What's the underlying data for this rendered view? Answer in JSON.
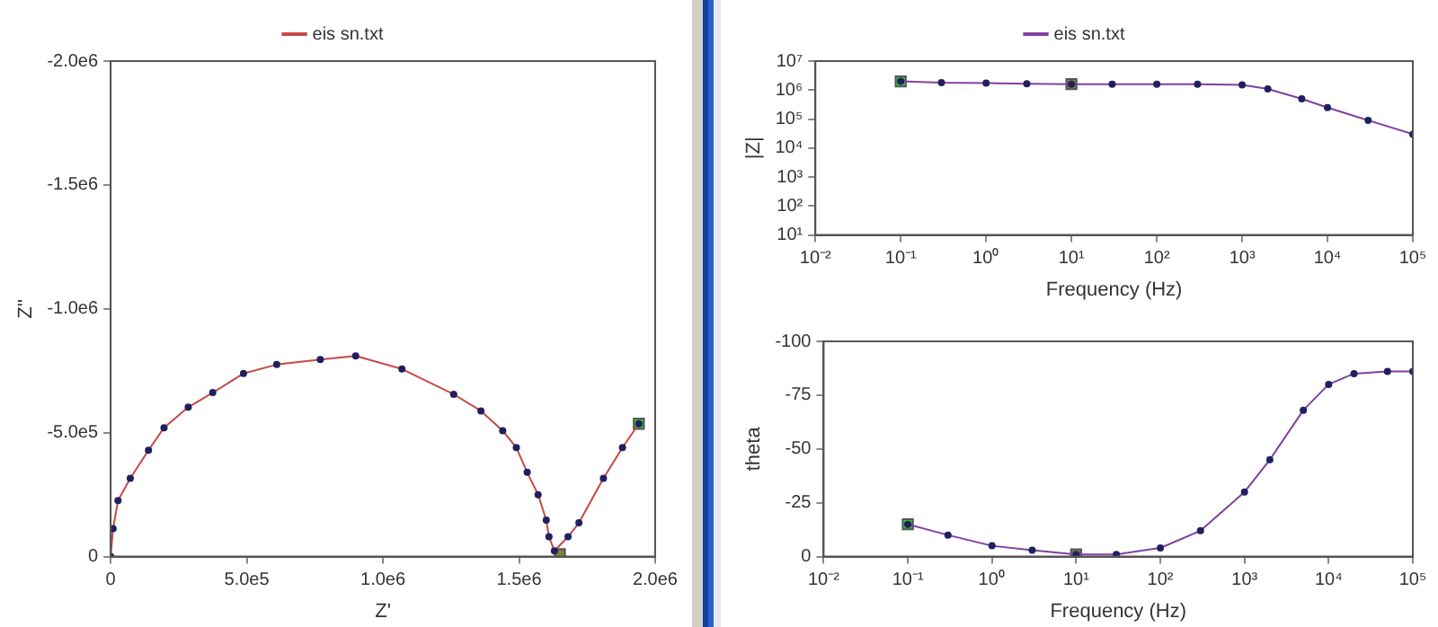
{
  "chart_data": [
    {
      "type": "line",
      "xlabel": "Z'",
      "ylabel": "Z''",
      "xlim": [
        0,
        2000000
      ],
      "xticks": [
        {
          "value": 0,
          "label": "0"
        },
        {
          "value": 500000,
          "label": "5.0e5"
        },
        {
          "value": 1000000,
          "label": "1.0e6"
        },
        {
          "value": 1500000,
          "label": "1.5e6"
        },
        {
          "value": 2000000,
          "label": "2.0e6"
        }
      ],
      "ylim": [
        0,
        -2000000
      ],
      "yticks": [
        {
          "value": 0,
          "label": "0"
        },
        {
          "value": -500000,
          "label": "-5.0e5"
        },
        {
          "value": -1000000,
          "label": "-1.0e6"
        },
        {
          "value": -1500000,
          "label": "-1.5e6"
        },
        {
          "value": -2000000,
          "label": "-2.0e6"
        }
      ],
      "grid": false,
      "legend": "top",
      "marker": "circle",
      "series": [
        {
          "name": "eis sn.txt",
          "color": "#c84848",
          "x": [
            0,
            9000,
            27000,
            72000,
            139000,
            196000,
            285000,
            375000,
            488000,
            610000,
            770000,
            900000,
            1070000,
            1260000,
            1360000,
            1440000,
            1490000,
            1530000,
            1570000,
            1600000,
            1610000,
            1630000,
            1680000,
            1720000,
            1810000,
            1880000,
            1940000
          ],
          "values": [
            0,
            -113000,
            -226000,
            -316000,
            -429000,
            -520000,
            -603000,
            -662000,
            -739000,
            -775000,
            -795000,
            -810000,
            -757000,
            -655000,
            -588000,
            -508000,
            -440000,
            -340000,
            -250000,
            -147000,
            -80000,
            -23000,
            -80000,
            -136000,
            -316000,
            -440000,
            -536000
          ]
        },
        {
          "type": "scatter",
          "marker": "square",
          "color": "#33cc33",
          "x": [
            1940000
          ],
          "values": [
            -536000
          ]
        },
        {
          "type": "scatter",
          "marker": "square",
          "color": "#808040",
          "x": [
            1650000
          ],
          "values": [
            -10000
          ]
        }
      ]
    },
    {
      "type": "line",
      "xlabel": "Frequency (Hz)",
      "ylabel": "|Z|",
      "log": "xy",
      "xlim": [
        0.01,
        100000
      ],
      "xticks": [
        {
          "value": 0.01,
          "label": "10⁻²"
        },
        {
          "value": 0.1,
          "label": "10⁻¹"
        },
        {
          "value": 1,
          "label": "10⁰"
        },
        {
          "value": 10,
          "label": "10¹"
        },
        {
          "value": 100,
          "label": "10²"
        },
        {
          "value": 1000,
          "label": "10³"
        },
        {
          "value": 10000,
          "label": "10⁴"
        },
        {
          "value": 100000,
          "label": "10⁵"
        }
      ],
      "ylim": [
        10,
        10000000
      ],
      "yticks": [
        {
          "value": 10,
          "label": "10¹"
        },
        {
          "value": 100,
          "label": "10²"
        },
        {
          "value": 1000,
          "label": "10³"
        },
        {
          "value": 10000,
          "label": "10⁴"
        },
        {
          "value": 100000,
          "label": "10⁵"
        },
        {
          "value": 1000000,
          "label": "10⁶"
        },
        {
          "value": 10000000,
          "label": "10⁷"
        }
      ],
      "grid": false,
      "legend": "top",
      "marker": "circle",
      "series": [
        {
          "name": "eis sn.txt",
          "color": "#8040a0",
          "x": [
            0.1,
            0.3,
            1,
            3,
            10,
            30,
            100,
            300,
            1000,
            2000,
            5000,
            10000,
            30000,
            100000
          ],
          "values": [
            2000000,
            1800000,
            1750000,
            1650000,
            1600000,
            1600000,
            1600000,
            1600000,
            1500000,
            1100000,
            500000,
            250000,
            90000,
            30000
          ]
        },
        {
          "type": "scatter",
          "marker": "square",
          "color": "#33cc33",
          "x": [
            0.1
          ],
          "values": [
            2000000
          ]
        },
        {
          "type": "scatter",
          "marker": "square",
          "color": "#808040",
          "x": [
            10
          ],
          "values": [
            1600000
          ]
        }
      ]
    },
    {
      "type": "line",
      "xlabel": "Frequency (Hz)",
      "ylabel": "theta",
      "log": "x",
      "xlim": [
        0.01,
        100000
      ],
      "xticks": [
        {
          "value": 0.01,
          "label": "10⁻²"
        },
        {
          "value": 0.1,
          "label": "10⁻¹"
        },
        {
          "value": 1,
          "label": "10⁰"
        },
        {
          "value": 10,
          "label": "10¹"
        },
        {
          "value": 100,
          "label": "10²"
        },
        {
          "value": 1000,
          "label": "10³"
        },
        {
          "value": 10000,
          "label": "10⁴"
        },
        {
          "value": 100000,
          "label": "10⁵"
        }
      ],
      "ylim": [
        0,
        -100
      ],
      "yticks": [
        0,
        -25,
        -50,
        -75,
        -100
      ],
      "grid": false,
      "marker": "circle",
      "series": [
        {
          "color": "#8040a0",
          "x": [
            0.1,
            0.3,
            1,
            3,
            10,
            30,
            100,
            300,
            1000,
            2000,
            5000,
            10000,
            20000,
            50000,
            100000
          ],
          "values": [
            -15,
            -10,
            -5,
            -3,
            -1,
            -1,
            -4,
            -12,
            -30,
            -45,
            -68,
            -80,
            -85,
            -86,
            -86
          ]
        },
        {
          "type": "scatter",
          "marker": "square",
          "color": "#33cc33",
          "x": [
            0.1
          ],
          "values": [
            -15
          ]
        },
        {
          "type": "scatter",
          "marker": "square",
          "color": "#808040",
          "x": [
            10
          ],
          "values": [
            -1
          ]
        }
      ]
    }
  ]
}
